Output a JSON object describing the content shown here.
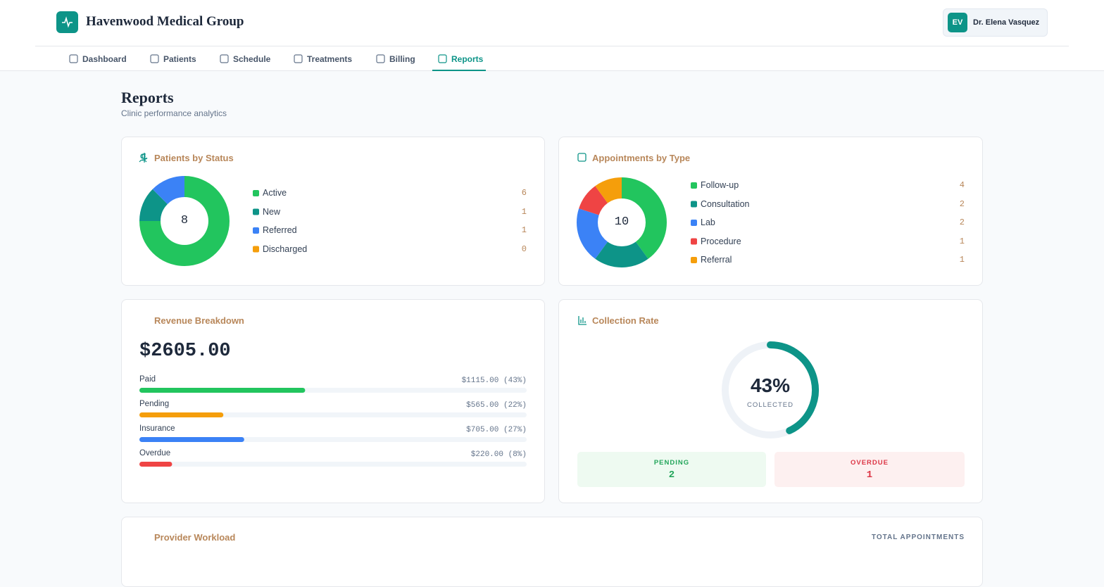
{
  "header": {
    "title": "Havenwood Medical Group",
    "user_initials": "EV",
    "user_name": "Dr. Elena Vasquez"
  },
  "nav": [
    "Dashboard",
    "Patients",
    "Schedule",
    "Treatments",
    "Billing",
    "Reports"
  ],
  "page": {
    "title": "Reports",
    "subtitle": "Clinic performance analytics"
  },
  "patients_by_status": {
    "type": "donut",
    "title": "Patients by Status",
    "total": 8,
    "categories": [
      "Active",
      "New",
      "Referred",
      "Discharged"
    ],
    "values": [
      6,
      1,
      1,
      0
    ],
    "colors": [
      "#22c55e",
      "#0d9488",
      "#3b82f6",
      "#f59e0b"
    ]
  },
  "appointments_by_type": {
    "type": "donut",
    "title": "Appointments by Type",
    "total": 10,
    "categories": [
      "Follow-up",
      "Consultation",
      "Lab",
      "Procedure",
      "Referral"
    ],
    "values": [
      4,
      2,
      2,
      1,
      1
    ],
    "colors": [
      "#22c55e",
      "#0d9488",
      "#3b82f6",
      "#ef4444",
      "#f59e0b"
    ]
  },
  "revenue": {
    "type": "bar",
    "title": "Revenue Breakdown",
    "total": "$2605.00",
    "categories": [
      "Paid",
      "Pending",
      "Insurance",
      "Overdue"
    ],
    "values": [
      1115,
      565,
      705,
      220
    ],
    "value_labels": [
      "$1115.00 (43%)",
      "$565.00 (22%)",
      "$705.00 (27%)",
      "$220.00 (8%)"
    ],
    "colors": [
      "#22c55e",
      "#f59e0b",
      "#3b82f6",
      "#ef4444"
    ]
  },
  "collection_rate": {
    "type": "gauge",
    "title": "Collection Rate",
    "value": 43,
    "value_label": "43%",
    "caption": "COLLECTED",
    "color": "#0d9488",
    "stats": [
      {
        "label": "PENDING",
        "value": 2
      },
      {
        "label": "OVERDUE",
        "value": 1
      }
    ]
  },
  "provider_workload": {
    "title": "Provider Workload",
    "column": "TOTAL APPOINTMENTS"
  }
}
